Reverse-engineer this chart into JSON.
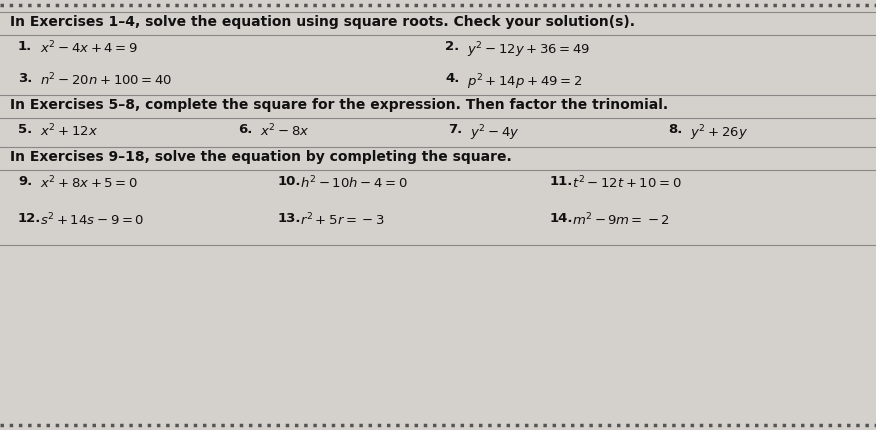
{
  "bg_color": "#d4d0cb",
  "panel_color": "#e8e6e1",
  "text_color": "#111111",
  "section1_header": "In Exercises 1–4, solve the equation using square roots. Check your solution(s).",
  "section2_header": "In Exercises 5–8, complete the square for the expression. Then factor the trinomial.",
  "section3_header": "In Exercises 9–18, solve the equation by completing the square.",
  "items": {
    "1": "$x^2 - 4x + 4 = 9$",
    "2": "$y^2 - 12y + 36 = 49$",
    "3": "$n^2 - 20n + 100 = 40$",
    "4": "$p^2 + 14p + 49 = 2$",
    "5": "$x^2 + 12x$",
    "6": "$x^2 - 8x$",
    "7": "$y^2 - 4y$",
    "8": "$y^2 + 26y$",
    "9": "$x^2 + 8x + 5 = 0$",
    "10": "$h^2 - 10h - 4 = 0$",
    "11": "$t^2 - 12t + 10 = 0$",
    "12": "$s^2 + 14s - 9 = 0$",
    "13": "$r^2 + 5r = -3$",
    "14": "$m^2 - 9m = -2$"
  },
  "header_fontsize": 10.0,
  "item_num_fontsize": 9.5,
  "item_expr_fontsize": 9.5,
  "line_color": "#888888",
  "border_color": "#555555"
}
